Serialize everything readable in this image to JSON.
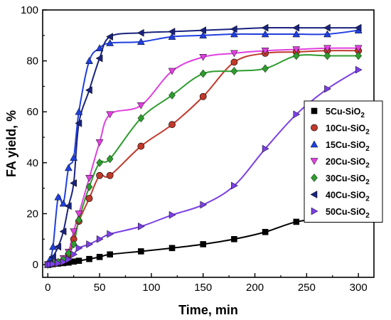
{
  "chart_data": {
    "type": "line",
    "title": "",
    "xlabel": "Time, min",
    "ylabel": "FA yield, %",
    "xlim": [
      -5,
      315
    ],
    "ylim": [
      -5,
      100
    ],
    "xticks": [
      0,
      50,
      100,
      150,
      200,
      250,
      300
    ],
    "yticks": [
      0,
      20,
      40,
      60,
      80,
      100
    ],
    "grid": false,
    "legend_position": "right",
    "series": [
      {
        "name": "5Cu-SiO",
        "sub": "2",
        "color": "#000000",
        "marker": "square",
        "x": [
          0,
          2,
          5,
          10,
          15,
          20,
          25,
          30,
          40,
          50,
          60,
          90,
          120,
          150,
          180,
          210,
          240,
          270,
          300
        ],
        "y": [
          0,
          0.1,
          0.2,
          0.4,
          0.6,
          0.8,
          1.2,
          1.5,
          2.2,
          3,
          4,
          5.2,
          6.5,
          8,
          10,
          12.8,
          16.8,
          18.3,
          18.8
        ]
      },
      {
        "name": "10Cu-SiO",
        "sub": "2",
        "color": "#c0392b",
        "marker": "circle",
        "x": [
          0,
          2,
          5,
          10,
          15,
          20,
          25,
          30,
          40,
          50,
          60,
          90,
          120,
          150,
          180,
          210,
          240,
          270,
          300
        ],
        "y": [
          0,
          0.1,
          0.3,
          0.8,
          1.5,
          4,
          10,
          17,
          26,
          35,
          35,
          46.5,
          55,
          66,
          79.5,
          83,
          83.5,
          84,
          84
        ]
      },
      {
        "name": "15Cu-SiO",
        "sub": "2",
        "color": "#1f3fe0",
        "marker": "triangle-up",
        "x": [
          0,
          2,
          5,
          10,
          15,
          20,
          25,
          30,
          40,
          50,
          60,
          90,
          120,
          150,
          180,
          210,
          240,
          270,
          300
        ],
        "y": [
          0,
          2,
          7,
          26.5,
          24,
          38,
          42,
          60,
          80,
          85,
          87,
          87.5,
          89.5,
          90,
          90.5,
          90.5,
          90.5,
          90.5,
          92
        ]
      },
      {
        "name": "20Cu-SiO",
        "sub": "2",
        "color": "#e040e0",
        "marker": "triangle-down",
        "x": [
          0,
          2,
          5,
          10,
          15,
          20,
          25,
          30,
          40,
          50,
          60,
          90,
          120,
          150,
          180,
          210,
          240,
          270,
          300
        ],
        "y": [
          0,
          0.2,
          0.5,
          1,
          2.5,
          5,
          13,
          20,
          34,
          48,
          59,
          62.5,
          76,
          81.5,
          83,
          84,
          84.5,
          85,
          85
        ]
      },
      {
        "name": "30Cu-SiO",
        "sub": "2",
        "color": "#2e9c2e",
        "marker": "diamond",
        "x": [
          0,
          2,
          5,
          10,
          15,
          20,
          25,
          30,
          40,
          50,
          60,
          90,
          120,
          150,
          180,
          210,
          240,
          270,
          300
        ],
        "y": [
          0,
          0.2,
          0.5,
          1,
          2,
          4.5,
          8,
          17.5,
          30.5,
          40,
          41.5,
          57.5,
          66.5,
          75,
          76,
          77,
          82,
          82,
          82
        ]
      },
      {
        "name": "40Cu-SiO",
        "sub": "2",
        "color": "#1a237e",
        "marker": "triangle-left",
        "x": [
          0,
          2,
          5,
          10,
          15,
          20,
          25,
          30,
          40,
          50,
          60,
          90,
          120,
          150,
          180,
          210,
          240,
          270,
          300
        ],
        "y": [
          0,
          0.5,
          3,
          7,
          13,
          23,
          32,
          55.5,
          68.5,
          81,
          89.5,
          91,
          91.5,
          92,
          92.5,
          93,
          93,
          93,
          93
        ]
      },
      {
        "name": "50Cu-SiO",
        "sub": "2",
        "color": "#7b3fe4",
        "marker": "triangle-right",
        "x": [
          0,
          2,
          5,
          10,
          15,
          20,
          25,
          30,
          40,
          50,
          60,
          90,
          120,
          150,
          180,
          210,
          240,
          270,
          300
        ],
        "y": [
          0,
          0.1,
          0.2,
          0.5,
          1,
          2,
          4,
          6.5,
          8,
          10,
          12,
          15,
          19.5,
          23.5,
          31,
          45.5,
          59,
          69,
          76.5
        ]
      }
    ]
  }
}
